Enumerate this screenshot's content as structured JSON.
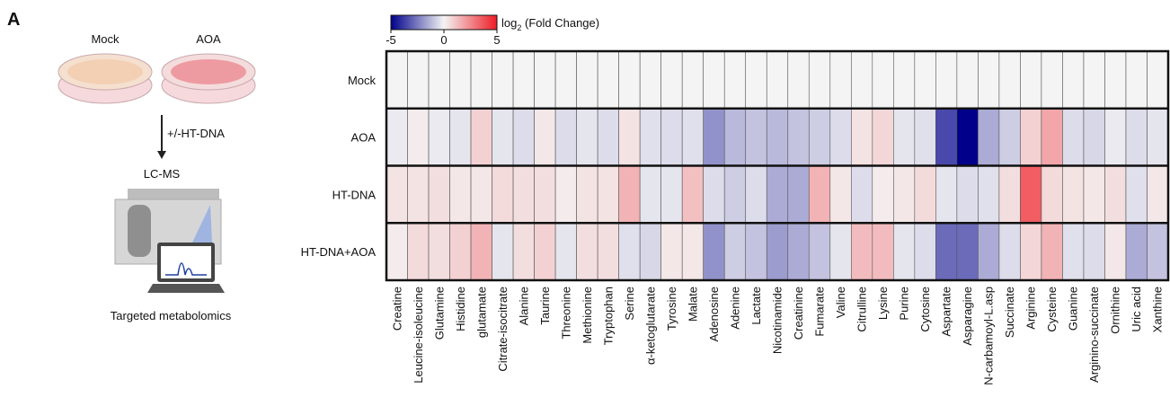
{
  "panel_label": "A",
  "schematic": {
    "conditions": [
      "Mock",
      "AOA"
    ],
    "treatment": "+/-HT-DNA",
    "instrument": "LC-MS",
    "method": "Targeted metabolomics"
  },
  "chart_data": {
    "type": "heatmap",
    "colorbar_label": [
      "log",
      "2",
      " (Fold Change)"
    ],
    "clim": [
      -5,
      5
    ],
    "cticks": [
      -5,
      0,
      5
    ],
    "colormap": [
      "#00008b",
      "#f4f4f4",
      "#ee1c25"
    ],
    "rows": [
      "Mock",
      "AOA",
      "HT-DNA",
      "HT-DNA+AOA"
    ],
    "columns": [
      "Creatine",
      "Leucine-isoleucine",
      "Glutamine",
      "Histidine",
      "glutamate",
      "Citrate-isocitrate",
      "Alanine",
      "Taurine",
      "Threonine",
      "Methionine",
      "Tryptophan",
      "Serine",
      "α-ketoglutarate",
      "Tyrosine",
      "Malate",
      "Adenosine",
      "Adenine",
      "Lactate",
      "Nicotinamide",
      "Creatinine",
      "Fumarate",
      "Valine",
      "Citrulline",
      "Lysine",
      "Purine",
      "Cytosine",
      "Aspartate",
      "Asparagine",
      "N-carbamoyl-L.asp",
      "Succinate",
      "Arginine",
      "Cysteine",
      "Guanine",
      "Arginino-succinate",
      "Ornithine",
      "Uric acid",
      "Xanthine"
    ],
    "values": [
      [
        0,
        0,
        0,
        0,
        0,
        0,
        0,
        0,
        0,
        0,
        0,
        0,
        0,
        0,
        0,
        0,
        0,
        0,
        0,
        0,
        0,
        0,
        0,
        0,
        0,
        0,
        0,
        0,
        0,
        0,
        0,
        0,
        0,
        0,
        0,
        0,
        0
      ],
      [
        -0.2,
        0.2,
        -0.2,
        -0.3,
        0.8,
        -0.3,
        -0.5,
        0.3,
        -0.5,
        -0.3,
        -0.5,
        0.4,
        -0.4,
        -0.5,
        -0.4,
        -2,
        -1.2,
        -1,
        -1.2,
        -1,
        -0.8,
        -0.5,
        0.4,
        0.7,
        -0.3,
        -0.4,
        -3.5,
        -5,
        -1.5,
        -0.8,
        0.8,
        1.8,
        -0.5,
        -0.6,
        -0.2,
        -0.5,
        -0.3
      ],
      [
        0.4,
        0.4,
        0.5,
        0.3,
        0.3,
        0.6,
        0.5,
        0.5,
        0.2,
        0.4,
        0.4,
        1.5,
        -0.3,
        -0.3,
        1.2,
        -0.5,
        -0.8,
        -0.5,
        -1.5,
        -1.5,
        1.5,
        0.3,
        -0.5,
        0.2,
        0.3,
        0.6,
        -0.3,
        -0.5,
        -0.4,
        0.5,
        3.5,
        0.6,
        0.4,
        0.3,
        0.5,
        -0.4,
        0.3
      ],
      [
        0.2,
        0.6,
        0.5,
        0.8,
        1.5,
        -0.3,
        0.5,
        0.8,
        -0.3,
        0.5,
        0.5,
        -0.4,
        -0.6,
        0.3,
        0.3,
        -2,
        -0.8,
        -1,
        -1.8,
        -1.5,
        -1,
        -0.3,
        1.3,
        1.3,
        -0.3,
        -0.5,
        -2.8,
        -2.8,
        -1.5,
        -0.5,
        0.7,
        1.5,
        -0.4,
        -0.5,
        0.3,
        -1.5,
        -1
      ]
    ]
  }
}
